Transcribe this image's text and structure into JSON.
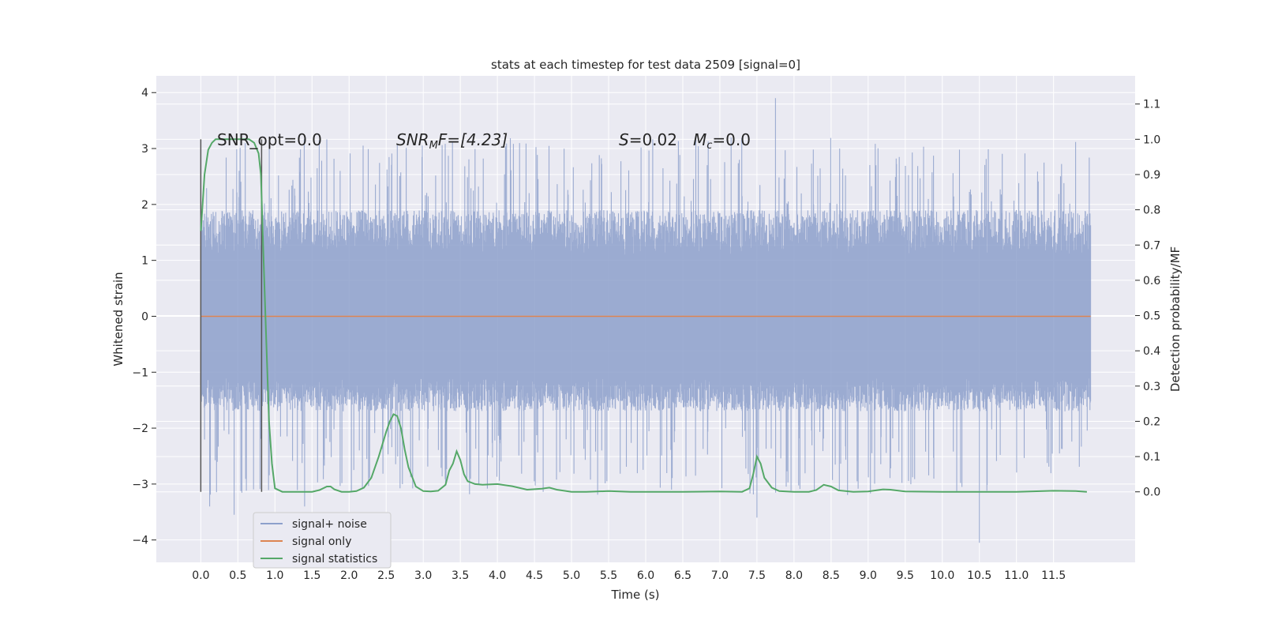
{
  "chart_data": {
    "type": "line",
    "title": "stats at each timestep for test data 2509 [signal=0]",
    "xlabel": "Time (s)",
    "ylabel": "Whitened strain",
    "ylabel_right": "Detection probability/MF",
    "xlim": [
      -0.6,
      12.6
    ],
    "ylim": [
      -4.4,
      4.3
    ],
    "ylim_right": [
      -0.2,
      1.18
    ],
    "xticks": [
      "0.0",
      "0.5",
      "1.0",
      "1.5",
      "2.0",
      "2.5",
      "3.0",
      "3.5",
      "4.0",
      "4.5",
      "5.0",
      "5.5",
      "6.0",
      "6.5",
      "7.0",
      "7.5",
      "8.0",
      "8.5",
      "9.0",
      "9.5",
      "10.0",
      "10.5",
      "11.0",
      "11.5"
    ],
    "yticks": [
      "−4",
      "−3",
      "−2",
      "−1",
      "0",
      "1",
      "2",
      "3",
      "4"
    ],
    "yticks_right": [
      "0.0",
      "0.1",
      "0.2",
      "0.3",
      "0.4",
      "0.5",
      "0.6",
      "0.7",
      "0.8",
      "0.9",
      "1.0",
      "1.1"
    ],
    "grid": true,
    "legend_position": "lower-left",
    "annotations": {
      "snr_opt": "SNR_opt=0.0",
      "snr_mf_prefix": "SNR",
      "snr_mf_sub": "M",
      "snr_mf_suffix": "F=[4.23]",
      "s_prefix": "S",
      "s_value": "=0.02",
      "mc_prefix": "M",
      "mc_sub": "c",
      "mc_value": "=0.0"
    },
    "vlines": [
      0.0,
      0.82
    ],
    "series": [
      {
        "name": "signal+ noise",
        "color": "#8da0cb",
        "x_range": [
          0.0,
          12.0
        ],
        "envelope_typical": [
          -1.6,
          1.8
        ],
        "extremes": [
          {
            "x": 7.75,
            "y": 3.9
          },
          {
            "x": 10.5,
            "y": -4.05
          },
          {
            "x": 0.45,
            "y": -3.55
          },
          {
            "x": 7.5,
            "y": -3.6
          },
          {
            "x": 0.12,
            "y": -3.4
          },
          {
            "x": 1.4,
            "y": -3.4
          }
        ]
      },
      {
        "name": "signal only",
        "color": "#dd8452",
        "x": [
          0.0,
          12.0
        ],
        "y": [
          0.0,
          0.0
        ]
      },
      {
        "name": "signal statistics",
        "color": "#55a868",
        "axis": "right",
        "x": [
          0.0,
          0.02,
          0.05,
          0.1,
          0.15,
          0.2,
          0.3,
          0.5,
          0.65,
          0.72,
          0.78,
          0.81,
          0.84,
          0.88,
          0.92,
          0.96,
          1.0,
          1.1,
          1.3,
          1.5,
          1.6,
          1.7,
          1.75,
          1.8,
          1.9,
          2.0,
          2.1,
          2.2,
          2.3,
          2.4,
          2.5,
          2.55,
          2.6,
          2.65,
          2.7,
          2.75,
          2.8,
          2.9,
          3.0,
          3.1,
          3.2,
          3.3,
          3.35,
          3.4,
          3.45,
          3.5,
          3.55,
          3.6,
          3.7,
          3.8,
          4.0,
          4.2,
          4.4,
          4.6,
          4.7,
          4.8,
          5.0,
          5.2,
          5.5,
          5.8,
          6.0,
          6.5,
          7.0,
          7.3,
          7.4,
          7.45,
          7.5,
          7.55,
          7.6,
          7.7,
          7.8,
          8.0,
          8.2,
          8.3,
          8.4,
          8.5,
          8.6,
          8.8,
          9.0,
          9.2,
          9.3,
          9.5,
          10.0,
          10.5,
          11.0,
          11.5,
          11.8,
          11.95
        ],
        "y": [
          0.74,
          0.8,
          0.9,
          0.97,
          0.99,
          1.0,
          1.0,
          1.0,
          1.0,
          0.99,
          0.96,
          0.9,
          0.7,
          0.45,
          0.2,
          0.08,
          0.01,
          0.0,
          0.0,
          0.0,
          0.005,
          0.015,
          0.015,
          0.007,
          0.0,
          0.0,
          0.002,
          0.012,
          0.04,
          0.1,
          0.17,
          0.2,
          0.22,
          0.215,
          0.18,
          0.12,
          0.07,
          0.015,
          0.002,
          0.001,
          0.003,
          0.02,
          0.06,
          0.08,
          0.115,
          0.09,
          0.05,
          0.03,
          0.022,
          0.02,
          0.022,
          0.016,
          0.006,
          0.009,
          0.012,
          0.006,
          0.0,
          0.0,
          0.002,
          0.0,
          0.0,
          0.0,
          0.001,
          0.0,
          0.01,
          0.05,
          0.1,
          0.08,
          0.04,
          0.012,
          0.002,
          0.0,
          0.0,
          0.005,
          0.02,
          0.015,
          0.004,
          0.0,
          0.001,
          0.007,
          0.006,
          0.001,
          0.0,
          0.0,
          0.0,
          0.003,
          0.002,
          0.0
        ]
      }
    ]
  }
}
